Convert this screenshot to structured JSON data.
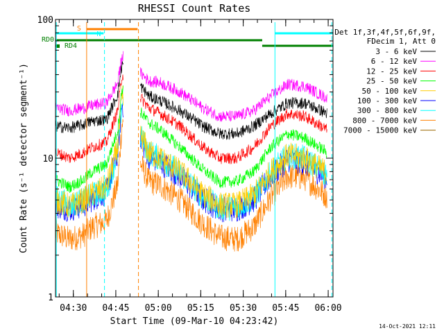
{
  "chart_data": {
    "type": "line",
    "title": "RHESSI Count Rates",
    "xlabel": "Start Time (09-Mar-10 04:23:42)",
    "ylabel": "Count Rate (s⁻¹ detector segment⁻¹)",
    "yscale": "log",
    "ylim": [
      1,
      100
    ],
    "xlim_minutes": [
      0,
      98
    ],
    "x_tick_minutes": [
      6.3,
      21.3,
      36.3,
      51.3,
      66.3,
      81.3,
      96.3
    ],
    "x_tick_labels": [
      "04:30",
      "04:45",
      "05:00",
      "05:15",
      "05:30",
      "05:45",
      "06:00"
    ],
    "y_tick_values": [
      1,
      10,
      100
    ],
    "y_tick_labels": [
      "1",
      "10",
      "100"
    ],
    "legend_header": [
      "Det 1f,3f,4f,5f,6f,9f,",
      "FDecim 1, Att 0"
    ],
    "series": [
      {
        "name": "3 - 6 keV",
        "color": "#000000",
        "values": [
          17,
          16.5,
          17.5,
          18.5,
          19,
          29,
          48,
          28,
          26,
          22,
          17,
          15,
          15,
          17,
          21,
          25,
          25,
          21
        ]
      },
      {
        "name": "6 - 12 keV",
        "color": "#ff00ff",
        "values": [
          23,
          22,
          23,
          24,
          25,
          35,
          55,
          36,
          35,
          30,
          23,
          20,
          20,
          22,
          28,
          34,
          33,
          27
        ]
      },
      {
        "name": "12 - 25 keV",
        "color": "#ff0000",
        "values": [
          11,
          10,
          11,
          12,
          13,
          22,
          40,
          23,
          21,
          17,
          12,
          10,
          10,
          12,
          17,
          21,
          20,
          16
        ]
      },
      {
        "name": "25 - 50 keV",
        "color": "#00ff00",
        "values": [
          7,
          6.2,
          7,
          8,
          9,
          16,
          32,
          18,
          16,
          12,
          8.3,
          6.7,
          6.8,
          8,
          12,
          15,
          14,
          11
        ]
      },
      {
        "name": "50 - 100 keV",
        "color": "#ffcc00",
        "values": [
          5,
          4.5,
          5,
          5.5,
          6.2,
          12,
          27,
          11,
          10,
          8,
          5.5,
          4.6,
          4.6,
          5.4,
          8,
          10.5,
          10,
          7.8
        ]
      },
      {
        "name": "100 - 300 keV",
        "color": "#0000ff",
        "values": [
          4.6,
          4.3,
          4.6,
          5.1,
          5.7,
          11,
          25,
          10.3,
          9.4,
          7.4,
          5.1,
          4.3,
          4.3,
          5,
          7.4,
          9.8,
          9.3,
          7.2
        ]
      },
      {
        "name": "300 - 800 keV",
        "color": "#00ffff",
        "values": [
          5.2,
          4.6,
          5,
          5.4,
          5.9,
          11,
          26,
          11,
          10,
          7.8,
          5.3,
          4.4,
          4.4,
          5.2,
          7.8,
          10.5,
          10,
          7.6
        ]
      },
      {
        "name": "800 - 7000 keV",
        "color": "#ff8000",
        "values": [
          2.9,
          2.6,
          2.8,
          3.2,
          3.5,
          6.5,
          18,
          6.8,
          6.4,
          5,
          3.4,
          2.7,
          2.6,
          3.2,
          5.2,
          7.4,
          7.2,
          5.3
        ]
      },
      {
        "name": "7000 - 15000 keV",
        "color": "#996600",
        "values": []
      }
    ],
    "series_x_minutes": [
      0,
      5,
      10,
      13,
      18,
      22,
      23.5,
      33,
      37,
      44,
      52,
      58,
      64,
      70,
      76,
      82,
      88,
      96
    ],
    "gap_minutes": [
      24,
      30
    ],
    "state_bars": [
      {
        "label": "S",
        "color": "#ff8000",
        "start": 11,
        "end": 29,
        "row": "top"
      },
      {
        "label": "N",
        "color": "#00ffff",
        "start": 0,
        "end": 17,
        "row": "second"
      },
      {
        "label": "",
        "color": "#00ffff",
        "start": 77.5,
        "end": 98,
        "row": "second"
      },
      {
        "label": "RD0",
        "color": "#008000",
        "start": 0,
        "end": 73,
        "row": "third"
      },
      {
        "label": "RD4",
        "color": "#008000",
        "start": 0,
        "end": 0.5,
        "row": "fourth"
      },
      {
        "label": "",
        "color": "#008000",
        "start": 73,
        "end": 98,
        "row": "fourth"
      }
    ],
    "vertical_markers": [
      {
        "minute": 0.3,
        "color": "#00ffff",
        "style": "solid"
      },
      {
        "minute": 11,
        "color": "#ff8000",
        "style": "solid"
      },
      {
        "minute": 17.3,
        "color": "#00ffff",
        "style": "dashed"
      },
      {
        "minute": 29.3,
        "color": "#ff8000",
        "style": "dashed"
      },
      {
        "minute": 77.5,
        "color": "#00ffff",
        "style": "solid"
      },
      {
        "minute": 97.6,
        "color": "#00ffff",
        "style": "dashed"
      }
    ]
  },
  "footer": {
    "timestamp": "14-Oct-2021 12:11"
  }
}
